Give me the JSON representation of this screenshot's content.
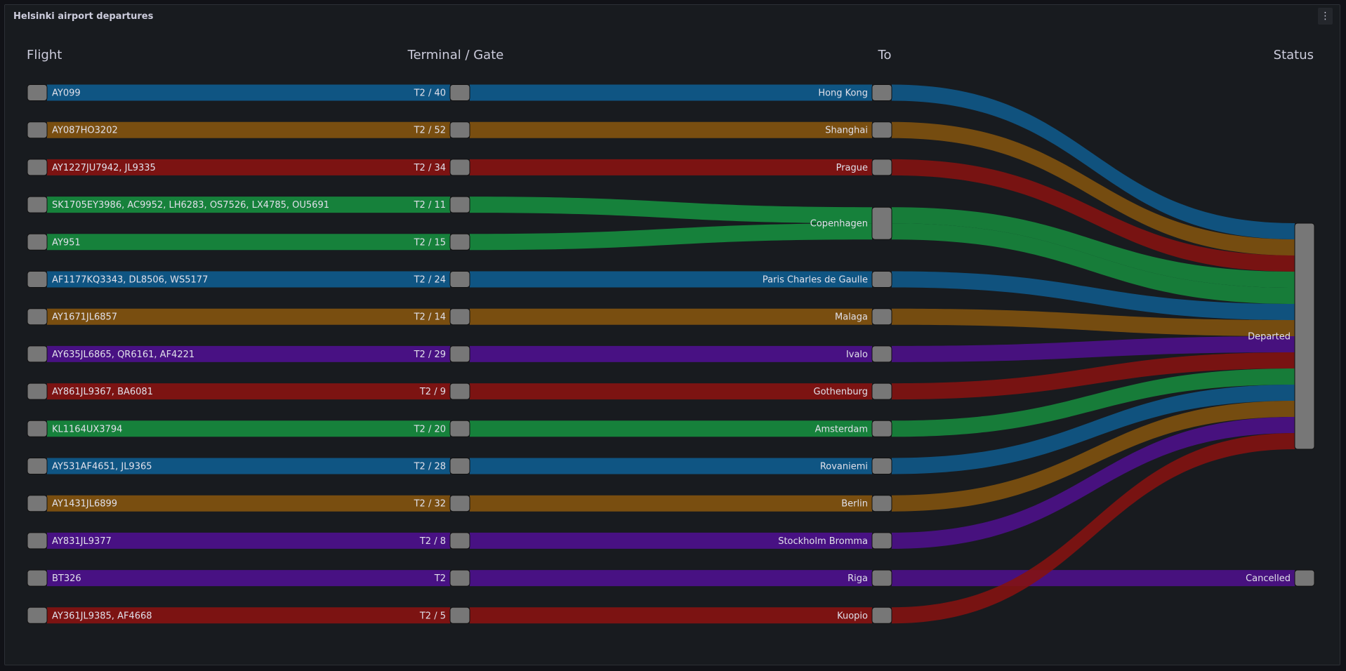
{
  "panel": {
    "title": "Helsinki airport departures",
    "menu_icon": "kebab-menu-icon"
  },
  "chart_data": {
    "type": "sankey",
    "columns": [
      "Flight",
      "Terminal / Gate",
      "To",
      "Status"
    ],
    "colors": {
      "blue": "#0f5a8c",
      "orange": "#82530f",
      "red": "#851211",
      "green": "#178a3e",
      "purple": "#4d108c",
      "node": "#777777"
    },
    "rows": [
      {
        "flight": "AY099",
        "gate": "T2 / 40",
        "to": "Hong Kong",
        "status": "Departed",
        "color": "blue"
      },
      {
        "flight": "AY087HO3202",
        "gate": "T2 / 52",
        "to": "Shanghai",
        "status": "Departed",
        "color": "orange"
      },
      {
        "flight": "AY1227JU7942, JL9335",
        "gate": "T2 / 34",
        "to": "Prague",
        "status": "Departed",
        "color": "red"
      },
      {
        "flight": "SK1705EY3986, AC9952, LH6283, OS7526, LX4785, OU5691",
        "gate": "T2 / 11",
        "to": "Copenhagen",
        "status": "Departed",
        "color": "green"
      },
      {
        "flight": "AY951",
        "gate": "T2 / 15",
        "to": "Copenhagen",
        "status": "Departed",
        "color": "green"
      },
      {
        "flight": "AF1177KQ3343, DL8506, WS5177",
        "gate": "T2 / 24",
        "to": "Paris Charles de Gaulle",
        "status": "Departed",
        "color": "blue"
      },
      {
        "flight": "AY1671JL6857",
        "gate": "T2 / 14",
        "to": "Malaga",
        "status": "Departed",
        "color": "orange"
      },
      {
        "flight": "AY635JL6865, QR6161, AF4221",
        "gate": "T2 / 29",
        "to": "Ivalo",
        "status": "Departed",
        "color": "purple"
      },
      {
        "flight": "AY861JL9367, BA6081",
        "gate": "T2 / 9",
        "to": "Gothenburg",
        "status": "Departed",
        "color": "red"
      },
      {
        "flight": "KL1164UX3794",
        "gate": "T2 / 20",
        "to": "Amsterdam",
        "status": "Departed",
        "color": "green"
      },
      {
        "flight": "AY531AF4651, JL9365",
        "gate": "T2 / 28",
        "to": "Rovaniemi",
        "status": "Departed",
        "color": "blue"
      },
      {
        "flight": "AY1431JL6899",
        "gate": "T2 / 32",
        "to": "Berlin",
        "status": "Departed",
        "color": "orange"
      },
      {
        "flight": "AY831JL9377",
        "gate": "T2 / 8",
        "to": "Stockholm Bromma",
        "status": "Departed",
        "color": "purple"
      },
      {
        "flight": "BT326",
        "gate": "T2",
        "to": "Riga",
        "status": "Cancelled",
        "color": "purple"
      },
      {
        "flight": "AY361JL9385, AF4668",
        "gate": "T2 / 5",
        "to": "Kuopio",
        "status": "Departed",
        "color": "red"
      }
    ]
  }
}
